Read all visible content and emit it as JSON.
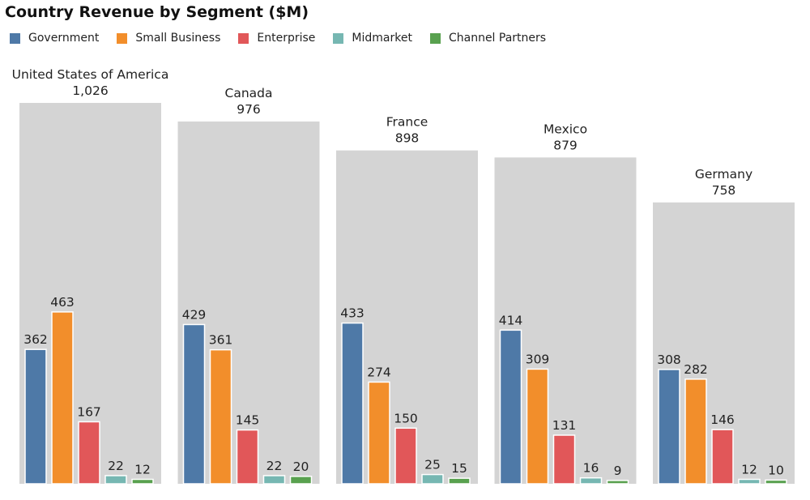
{
  "chart_data": {
    "type": "bar",
    "title": "Country Revenue by Segment ($M)",
    "xlabel": "",
    "ylabel": "",
    "ylim": [
      0,
      1026
    ],
    "grid": false,
    "legend_position": "top-left",
    "segments": [
      "Government",
      "Small Business",
      "Enterprise",
      "Midmarket",
      "Channel Partners"
    ],
    "segment_colors": [
      "#4e79a7",
      "#f28e2b",
      "#e15759",
      "#76b7b2",
      "#59a14f"
    ],
    "total_color": "#d4d4d4",
    "countries": [
      {
        "name": "United States of America",
        "total": 1026,
        "total_label": "1,026",
        "values": [
          362,
          463,
          167,
          22,
          12
        ]
      },
      {
        "name": "Canada",
        "total": 976,
        "total_label": "976",
        "values": [
          429,
          361,
          145,
          22,
          20
        ]
      },
      {
        "name": "France",
        "total": 898,
        "total_label": "898",
        "values": [
          433,
          274,
          150,
          25,
          15
        ]
      },
      {
        "name": "Mexico",
        "total": 879,
        "total_label": "879",
        "values": [
          414,
          309,
          131,
          16,
          9
        ]
      },
      {
        "name": "Germany",
        "total": 758,
        "total_label": "758",
        "values": [
          308,
          282,
          146,
          12,
          10
        ]
      }
    ]
  }
}
